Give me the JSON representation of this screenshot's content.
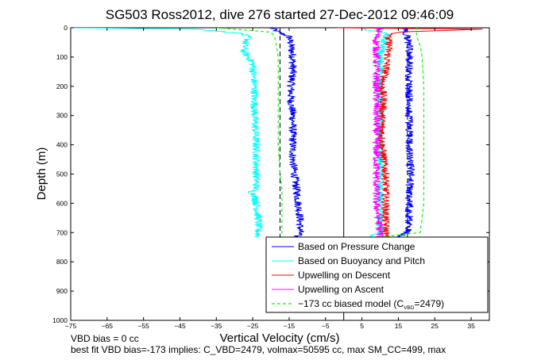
{
  "chart_data": {
    "type": "line",
    "title": "SG503 Ross2012, dive 276 started 27-Dec-2012 09:46:09",
    "xlabel": "Vertical Velocity (cm/s)",
    "ylabel": "Depth (m)",
    "xlim": [
      -75,
      40
    ],
    "ylim": [
      1000,
      0
    ],
    "y_reversed": true,
    "grid": false,
    "legend_position": "bottom-right",
    "xticks": [
      "−75",
      "−65",
      "−55",
      "−45",
      "−35",
      "−25",
      "−15",
      "−5",
      "5",
      "15",
      "25",
      "35"
    ],
    "xtick_values": [
      -75,
      -65,
      -55,
      -45,
      -35,
      -25,
      -15,
      -5,
      5,
      15,
      25,
      35
    ],
    "yticks": [
      "0",
      "100",
      "200",
      "300",
      "400",
      "500",
      "600",
      "700",
      "800",
      "900",
      "1000"
    ],
    "ytick_values": [
      0,
      100,
      200,
      300,
      400,
      500,
      600,
      700,
      800,
      900,
      1000
    ],
    "reference_lines": [
      {
        "kind": "vertical",
        "x": 0,
        "style": "solid",
        "color": "#000000"
      },
      {
        "kind": "vertical",
        "x": -17.5,
        "y_range": [
          0,
          715
        ],
        "style": "dashed",
        "color": "#000000"
      },
      {
        "kind": "vertical",
        "x": 17.5,
        "y_range": [
          0,
          715
        ],
        "style": "dashed",
        "color": "#000000"
      }
    ],
    "series": [
      {
        "name": "Based on Pressure Change",
        "color": "#0000ff",
        "style": "solid",
        "segments": [
          {
            "y": [
              0,
              15,
              30,
              60,
              100,
              150,
              200,
              250,
              300,
              350,
              400,
              450,
              500,
              550,
              600,
              650,
              700,
              715
            ],
            "x": [
              -20,
              -18,
              -15,
              -14.5,
              -14,
              -14,
              -14.5,
              -14.5,
              -14,
              -14,
              -14,
              -14,
              -13.5,
              -13,
              -12.5,
              -12,
              -12,
              -13
            ]
          },
          {
            "y": [
              715,
              700,
              650,
              600,
              550,
              500,
              450,
              400,
              350,
              300,
              250,
              200,
              150,
              100,
              60,
              30,
              15,
              0
            ],
            "x": [
              15,
              17.5,
              18,
              18,
              18,
              18.5,
              18,
              18,
              18,
              18,
              18,
              18,
              18,
              18,
              18,
              17.5,
              17,
              17
            ]
          }
        ]
      },
      {
        "name": "Based on Buoyancy and Pitch",
        "color": "#00ffff",
        "style": "solid",
        "segments": [
          {
            "y": [
              0,
              5,
              20,
              35,
              50,
              80,
              120,
              200,
              300,
              400,
              500,
              550,
              560,
              570,
              600,
              650,
              700,
              715
            ],
            "x": [
              -75,
              -40,
              -28,
              -26,
              -27,
              -27.5,
              -25,
              -24.5,
              -24.5,
              -24,
              -24,
              -24,
              -25.5,
              -24.5,
              -24,
              -23.5,
              -23.5,
              -23.5
            ]
          },
          {
            "y": [
              715,
              700,
              650,
              600,
              550,
              500,
              400,
              300,
              200,
              100,
              50,
              20,
              5,
              0
            ],
            "x": [
              7,
              10,
              10,
              10,
              10,
              10,
              10,
              10,
              10,
              10,
              11,
              12,
              6,
              5
            ]
          }
        ]
      },
      {
        "name": "Upwelling on Descent",
        "color": "#ff0000",
        "style": "solid",
        "segments": [
          {
            "y": [
              0,
              5,
              15,
              30,
              60,
              100,
              150,
              200,
              250,
              300,
              350,
              400,
              450,
              500,
              550,
              600,
              650,
              700,
              715
            ],
            "x": [
              -2,
              38,
              15,
              12,
              12.5,
              12,
              11.5,
              10.5,
              11,
              10.5,
              10.5,
              10.5,
              11,
              11.5,
              11.5,
              11.5,
              11.5,
              11.5,
              11.5
            ]
          }
        ]
      },
      {
        "name": "Upwelling on Ascent",
        "color": "#ff00ff",
        "style": "solid",
        "segments": [
          {
            "y": [
              0,
              15,
              30,
              60,
              100,
              150,
              200,
              250,
              300,
              350,
              400,
              450,
              500,
              550,
              600,
              650,
              700,
              715
            ],
            "x": [
              10,
              9.5,
              9,
              9,
              9,
              9,
              9,
              9,
              9,
              9,
              9,
              9,
              9,
              9,
              9,
              9.5,
              10,
              10
            ]
          }
        ]
      },
      {
        "name": "−173 cc biased model (C",
        "name_subscript": "VBD",
        "name_suffix": "=2479)",
        "color": "#00ff00",
        "style": "dashed",
        "segments": [
          {
            "y": [
              0,
              15,
              30,
              60,
              100,
              150,
              200,
              300,
              400,
              500,
              550,
              600,
              650,
              700,
              715
            ],
            "x": [
              -35,
              -20,
              -19,
              -18.5,
              -18,
              -18,
              -18,
              -18,
              -18,
              -17.5,
              -17,
              -17,
              -17,
              -17,
              -17
            ]
          },
          {
            "y": [
              715,
              700,
              650,
              600,
              550,
              500,
              400,
              300,
              200,
              100,
              60,
              30,
              15,
              0
            ],
            "x": [
              10,
              21,
              21.5,
              22,
              22,
              22,
              22,
              22,
              22,
              21.5,
              21,
              20,
              20,
              20
            ]
          }
        ]
      }
    ]
  },
  "footer": {
    "line1": "VBD bias = 0 cc",
    "line2": "best fit VBD bias=-173 implies: C_VBD=2479, volmax=50595 cc, max SM_CC=499, max"
  }
}
